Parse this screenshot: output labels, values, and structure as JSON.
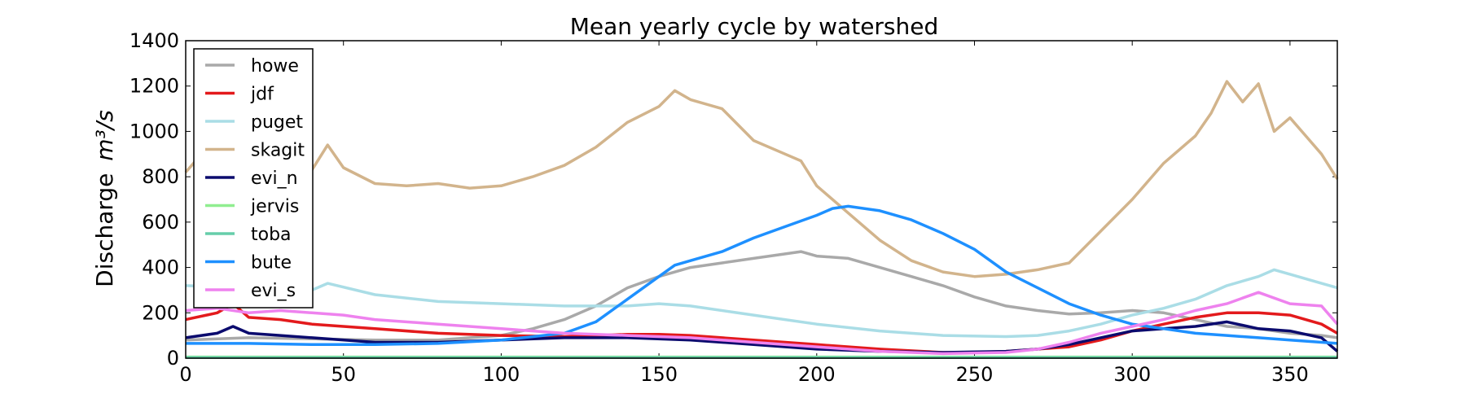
{
  "chart_data": {
    "type": "line",
    "title": "Mean yearly cycle by watershed",
    "xlabel": "",
    "ylabel": "Discharge",
    "ylabel_unit": "m³/s",
    "xlim": [
      0,
      365
    ],
    "ylim": [
      0,
      1400
    ],
    "xticks": [
      0,
      50,
      100,
      150,
      200,
      250,
      300,
      350
    ],
    "yticks": [
      0,
      200,
      400,
      600,
      800,
      1000,
      1200,
      1400
    ],
    "grid": false,
    "legend": "top-left",
    "series": [
      {
        "name": "howe",
        "color": "#a9a9a9",
        "points": [
          [
            0,
            80
          ],
          [
            20,
            90
          ],
          [
            40,
            85
          ],
          [
            60,
            80
          ],
          [
            80,
            80
          ],
          [
            100,
            100
          ],
          [
            110,
            130
          ],
          [
            120,
            170
          ],
          [
            130,
            230
          ],
          [
            140,
            310
          ],
          [
            150,
            360
          ],
          [
            160,
            400
          ],
          [
            170,
            420
          ],
          [
            180,
            440
          ],
          [
            190,
            460
          ],
          [
            195,
            470
          ],
          [
            200,
            450
          ],
          [
            210,
            440
          ],
          [
            220,
            400
          ],
          [
            230,
            360
          ],
          [
            240,
            320
          ],
          [
            250,
            270
          ],
          [
            260,
            230
          ],
          [
            270,
            210
          ],
          [
            280,
            195
          ],
          [
            290,
            200
          ],
          [
            300,
            210
          ],
          [
            310,
            200
          ],
          [
            320,
            170
          ],
          [
            330,
            140
          ],
          [
            340,
            130
          ],
          [
            350,
            110
          ],
          [
            360,
            100
          ],
          [
            365,
            90
          ]
        ]
      },
      {
        "name": "jdf",
        "color": "#e31a1c",
        "points": [
          [
            0,
            170
          ],
          [
            10,
            200
          ],
          [
            15,
            240
          ],
          [
            20,
            180
          ],
          [
            30,
            170
          ],
          [
            40,
            150
          ],
          [
            50,
            140
          ],
          [
            60,
            130
          ],
          [
            80,
            110
          ],
          [
            100,
            100
          ],
          [
            120,
            95
          ],
          [
            140,
            105
          ],
          [
            150,
            105
          ],
          [
            160,
            100
          ],
          [
            180,
            80
          ],
          [
            200,
            60
          ],
          [
            220,
            40
          ],
          [
            240,
            25
          ],
          [
            250,
            25
          ],
          [
            260,
            30
          ],
          [
            270,
            40
          ],
          [
            280,
            50
          ],
          [
            290,
            80
          ],
          [
            300,
            120
          ],
          [
            310,
            150
          ],
          [
            320,
            180
          ],
          [
            330,
            200
          ],
          [
            340,
            200
          ],
          [
            350,
            190
          ],
          [
            360,
            150
          ],
          [
            365,
            110
          ]
        ]
      },
      {
        "name": "puget",
        "color": "#aadde6",
        "points": [
          [
            0,
            320
          ],
          [
            20,
            310
          ],
          [
            40,
            300
          ],
          [
            45,
            330
          ],
          [
            60,
            280
          ],
          [
            80,
            250
          ],
          [
            100,
            240
          ],
          [
            120,
            230
          ],
          [
            140,
            230
          ],
          [
            150,
            240
          ],
          [
            160,
            230
          ],
          [
            180,
            190
          ],
          [
            200,
            150
          ],
          [
            220,
            120
          ],
          [
            240,
            100
          ],
          [
            260,
            95
          ],
          [
            270,
            100
          ],
          [
            280,
            120
          ],
          [
            290,
            150
          ],
          [
            300,
            190
          ],
          [
            310,
            220
          ],
          [
            320,
            260
          ],
          [
            330,
            320
          ],
          [
            340,
            360
          ],
          [
            345,
            390
          ],
          [
            350,
            370
          ],
          [
            360,
            330
          ],
          [
            365,
            310
          ]
        ]
      },
      {
        "name": "skagit",
        "color": "#d2b48c",
        "points": [
          [
            0,
            820
          ],
          [
            5,
            900
          ],
          [
            10,
            930
          ],
          [
            20,
            870
          ],
          [
            30,
            860
          ],
          [
            40,
            830
          ],
          [
            45,
            940
          ],
          [
            50,
            840
          ],
          [
            60,
            770
          ],
          [
            70,
            760
          ],
          [
            80,
            770
          ],
          [
            90,
            750
          ],
          [
            100,
            760
          ],
          [
            110,
            800
          ],
          [
            120,
            850
          ],
          [
            130,
            930
          ],
          [
            140,
            1040
          ],
          [
            150,
            1110
          ],
          [
            155,
            1180
          ],
          [
            160,
            1140
          ],
          [
            170,
            1100
          ],
          [
            180,
            960
          ],
          [
            190,
            900
          ],
          [
            195,
            870
          ],
          [
            200,
            760
          ],
          [
            210,
            640
          ],
          [
            220,
            520
          ],
          [
            230,
            430
          ],
          [
            240,
            380
          ],
          [
            250,
            360
          ],
          [
            260,
            370
          ],
          [
            270,
            390
          ],
          [
            280,
            420
          ],
          [
            290,
            560
          ],
          [
            300,
            700
          ],
          [
            310,
            860
          ],
          [
            320,
            980
          ],
          [
            325,
            1080
          ],
          [
            330,
            1220
          ],
          [
            335,
            1130
          ],
          [
            340,
            1210
          ],
          [
            345,
            1000
          ],
          [
            350,
            1060
          ],
          [
            355,
            980
          ],
          [
            360,
            900
          ],
          [
            365,
            790
          ]
        ]
      },
      {
        "name": "evi_n",
        "color": "#0b0b6e",
        "points": [
          [
            0,
            90
          ],
          [
            10,
            110
          ],
          [
            15,
            140
          ],
          [
            20,
            110
          ],
          [
            30,
            100
          ],
          [
            40,
            90
          ],
          [
            60,
            70
          ],
          [
            80,
            70
          ],
          [
            100,
            80
          ],
          [
            120,
            90
          ],
          [
            140,
            90
          ],
          [
            160,
            80
          ],
          [
            180,
            60
          ],
          [
            200,
            40
          ],
          [
            220,
            30
          ],
          [
            240,
            25
          ],
          [
            260,
            30
          ],
          [
            270,
            40
          ],
          [
            280,
            60
          ],
          [
            290,
            90
          ],
          [
            300,
            120
          ],
          [
            310,
            130
          ],
          [
            320,
            140
          ],
          [
            330,
            160
          ],
          [
            340,
            130
          ],
          [
            350,
            120
          ],
          [
            360,
            90
          ],
          [
            365,
            30
          ]
        ]
      },
      {
        "name": "jervis",
        "color": "#90ee90",
        "points": [
          [
            0,
            5
          ],
          [
            100,
            5
          ],
          [
            200,
            5
          ],
          [
            300,
            5
          ],
          [
            365,
            5
          ]
        ]
      },
      {
        "name": "toba",
        "color": "#66cdaa",
        "points": [
          [
            0,
            3
          ],
          [
            100,
            3
          ],
          [
            200,
            3
          ],
          [
            300,
            3
          ],
          [
            365,
            3
          ]
        ]
      },
      {
        "name": "bute",
        "color": "#1e90ff",
        "points": [
          [
            0,
            65
          ],
          [
            20,
            65
          ],
          [
            40,
            60
          ],
          [
            60,
            60
          ],
          [
            80,
            65
          ],
          [
            100,
            80
          ],
          [
            120,
            110
          ],
          [
            130,
            160
          ],
          [
            140,
            260
          ],
          [
            150,
            360
          ],
          [
            155,
            410
          ],
          [
            160,
            430
          ],
          [
            170,
            470
          ],
          [
            180,
            530
          ],
          [
            190,
            580
          ],
          [
            200,
            630
          ],
          [
            205,
            660
          ],
          [
            210,
            670
          ],
          [
            220,
            650
          ],
          [
            230,
            610
          ],
          [
            240,
            550
          ],
          [
            250,
            480
          ],
          [
            255,
            430
          ],
          [
            260,
            380
          ],
          [
            270,
            310
          ],
          [
            280,
            240
          ],
          [
            290,
            190
          ],
          [
            300,
            150
          ],
          [
            310,
            130
          ],
          [
            320,
            110
          ],
          [
            330,
            100
          ],
          [
            340,
            90
          ],
          [
            350,
            80
          ],
          [
            365,
            65
          ]
        ]
      },
      {
        "name": "evi_s",
        "color": "#ee82ee",
        "points": [
          [
            0,
            210
          ],
          [
            10,
            220
          ],
          [
            20,
            200
          ],
          [
            30,
            210
          ],
          [
            40,
            200
          ],
          [
            50,
            190
          ],
          [
            60,
            170
          ],
          [
            80,
            150
          ],
          [
            100,
            130
          ],
          [
            120,
            110
          ],
          [
            140,
            100
          ],
          [
            150,
            95
          ],
          [
            160,
            90
          ],
          [
            180,
            70
          ],
          [
            200,
            50
          ],
          [
            220,
            30
          ],
          [
            240,
            20
          ],
          [
            260,
            25
          ],
          [
            270,
            40
          ],
          [
            280,
            70
          ],
          [
            290,
            110
          ],
          [
            300,
            140
          ],
          [
            310,
            170
          ],
          [
            320,
            210
          ],
          [
            330,
            240
          ],
          [
            340,
            290
          ],
          [
            350,
            240
          ],
          [
            360,
            230
          ],
          [
            365,
            150
          ]
        ]
      }
    ]
  }
}
